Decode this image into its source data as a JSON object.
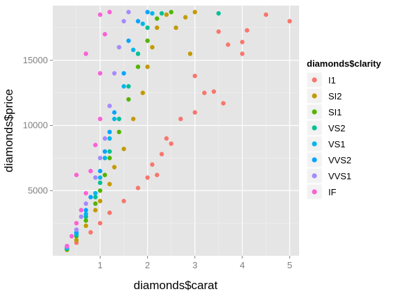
{
  "chart_data": {
    "type": "scatter",
    "xlabel": "diamonds$carat",
    "ylabel": "diamonds$price",
    "xlim": [
      0.0,
      5.2
    ],
    "ylim": [
      0,
      19200
    ],
    "x_ticks": [
      1,
      2,
      3,
      4,
      5
    ],
    "y_ticks": [
      5000,
      10000,
      15000
    ],
    "grid": true,
    "legend": {
      "title": "diamonds$clarity",
      "position": "right"
    },
    "series": [
      {
        "name": "I1",
        "color": "#F8766D",
        "points": [
          [
            0.5,
            1000
          ],
          [
            0.8,
            1800
          ],
          [
            1.0,
            2500
          ],
          [
            1.2,
            3300
          ],
          [
            1.5,
            4200
          ],
          [
            1.8,
            5200
          ],
          [
            2.0,
            6000
          ],
          [
            2.1,
            7000
          ],
          [
            2.2,
            6200
          ],
          [
            2.3,
            7800
          ],
          [
            2.4,
            9000
          ],
          [
            2.5,
            8600
          ],
          [
            2.7,
            10500
          ],
          [
            3.0,
            11000
          ],
          [
            3.0,
            13800
          ],
          [
            3.2,
            12500
          ],
          [
            3.4,
            12600
          ],
          [
            3.6,
            11700
          ],
          [
            3.5,
            17200
          ],
          [
            3.7,
            16200
          ],
          [
            4.0,
            15500
          ],
          [
            4.0,
            16400
          ],
          [
            4.1,
            17300
          ],
          [
            4.5,
            18500
          ],
          [
            5.0,
            18000
          ]
        ]
      },
      {
        "name": "SI2",
        "color": "#C49A00",
        "points": [
          [
            0.3,
            450
          ],
          [
            0.5,
            1200
          ],
          [
            0.7,
            2300
          ],
          [
            0.9,
            3500
          ],
          [
            1.0,
            4200
          ],
          [
            1.2,
            5500
          ],
          [
            1.3,
            6800
          ],
          [
            1.5,
            8200
          ],
          [
            1.7,
            10500
          ],
          [
            1.9,
            12500
          ],
          [
            2.0,
            14500
          ],
          [
            2.1,
            16000
          ],
          [
            2.2,
            17500
          ],
          [
            2.4,
            18500
          ],
          [
            2.6,
            17500
          ],
          [
            2.8,
            18300
          ],
          [
            3.0,
            18700
          ],
          [
            2.9,
            15500
          ]
        ]
      },
      {
        "name": "SI1",
        "color": "#53B400",
        "points": [
          [
            0.3,
            500
          ],
          [
            0.5,
            1500
          ],
          [
            0.7,
            2700
          ],
          [
            0.9,
            4000
          ],
          [
            1.0,
            5000
          ],
          [
            1.1,
            6200
          ],
          [
            1.2,
            7500
          ],
          [
            1.4,
            9500
          ],
          [
            1.6,
            12000
          ],
          [
            1.8,
            14500
          ],
          [
            2.0,
            16500
          ],
          [
            2.2,
            18200
          ],
          [
            2.5,
            18700
          ]
        ]
      },
      {
        "name": "VS2",
        "color": "#00C094",
        "points": [
          [
            0.3,
            550
          ],
          [
            0.5,
            1600
          ],
          [
            0.7,
            3000
          ],
          [
            0.9,
            4500
          ],
          [
            1.0,
            5600
          ],
          [
            1.2,
            8000
          ],
          [
            1.4,
            10500
          ],
          [
            1.6,
            13000
          ],
          [
            1.8,
            15500
          ],
          [
            2.0,
            17500
          ],
          [
            2.3,
            18600
          ],
          [
            3.5,
            18600
          ]
        ]
      },
      {
        "name": "VS1",
        "color": "#00B6EB",
        "points": [
          [
            0.3,
            600
          ],
          [
            0.5,
            1700
          ],
          [
            0.7,
            3200
          ],
          [
            0.9,
            4800
          ],
          [
            1.0,
            6000
          ],
          [
            1.1,
            7500
          ],
          [
            1.2,
            9000
          ],
          [
            1.3,
            10500
          ],
          [
            1.5,
            13000
          ],
          [
            1.7,
            15800
          ],
          [
            1.9,
            17800
          ],
          [
            2.1,
            18600
          ]
        ]
      },
      {
        "name": "VVS2",
        "color": "#06A4FF",
        "points": [
          [
            0.3,
            650
          ],
          [
            0.5,
            1800
          ],
          [
            0.7,
            3500
          ],
          [
            0.8,
            4500
          ],
          [
            1.0,
            6500
          ],
          [
            1.1,
            8000
          ],
          [
            1.2,
            9500
          ],
          [
            1.3,
            11000
          ],
          [
            1.5,
            14000
          ],
          [
            1.6,
            16500
          ],
          [
            1.8,
            18000
          ],
          [
            2.0,
            18700
          ]
        ]
      },
      {
        "name": "VVS1",
        "color": "#A58AFF",
        "points": [
          [
            0.3,
            700
          ],
          [
            0.5,
            2000
          ],
          [
            0.6,
            3000
          ],
          [
            0.7,
            4000
          ],
          [
            0.9,
            6000
          ],
          [
            1.0,
            7500
          ],
          [
            1.1,
            9000
          ],
          [
            1.2,
            11500
          ],
          [
            1.3,
            14000
          ],
          [
            1.4,
            16000
          ],
          [
            1.5,
            18000
          ],
          [
            1.6,
            18700
          ]
        ]
      },
      {
        "name": "IF",
        "color": "#FB61D7",
        "points": [
          [
            0.3,
            750
          ],
          [
            0.4,
            1500
          ],
          [
            0.5,
            2500
          ],
          [
            0.6,
            3500
          ],
          [
            0.7,
            4800
          ],
          [
            0.8,
            6500
          ],
          [
            0.9,
            8500
          ],
          [
            1.0,
            10500
          ],
          [
            1.0,
            14000
          ],
          [
            1.1,
            17000
          ],
          [
            1.0,
            18500
          ],
          [
            0.7,
            15500
          ],
          [
            0.5,
            6200
          ],
          [
            1.2,
            18700
          ]
        ]
      }
    ]
  }
}
